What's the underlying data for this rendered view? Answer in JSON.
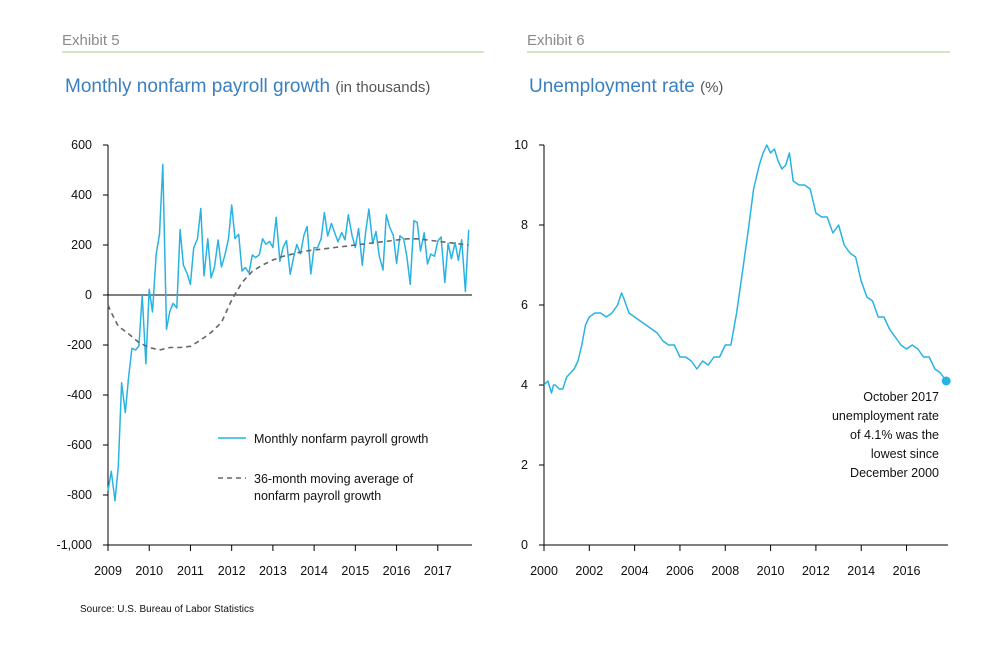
{
  "exhibits": [
    {
      "label": "Exhibit 5"
    },
    {
      "label": "Exhibit 6"
    }
  ],
  "source": "Source: U.S. Bureau of Labor Statistics",
  "colors": {
    "series": "#29b3e2",
    "average": "#666666",
    "rule": "#a9cf8a",
    "title": "#3a80c1"
  },
  "chart_data": [
    {
      "type": "line",
      "title": "Monthly nonfarm payroll growth",
      "subtitle": "(in thousands)",
      "ylim": [
        -1000,
        600
      ],
      "yticks": [
        600,
        400,
        200,
        0,
        -200,
        -400,
        -600,
        -800,
        -1000
      ],
      "ytick_labels": [
        "600",
        "400",
        "200",
        "0",
        "-200",
        "-400",
        "-600",
        "-800",
        "-1,000"
      ],
      "xlim": [
        2009,
        2017.83
      ],
      "xticks": [
        2009,
        2010,
        2011,
        2012,
        2013,
        2014,
        2015,
        2016,
        2017
      ],
      "xtick_labels": [
        "2009",
        "2010",
        "2011",
        "2012",
        "2013",
        "2014",
        "2015",
        "2016",
        "2017"
      ],
      "zero_line": true,
      "legend_position": "bottom-right",
      "series": [
        {
          "name": "Monthly nonfarm payroll growth",
          "style": "solid",
          "x": [
            2009.0,
            2009.08,
            2009.17,
            2009.25,
            2009.33,
            2009.42,
            2009.5,
            2009.58,
            2009.67,
            2009.75,
            2009.83,
            2009.92,
            2010.0,
            2010.08,
            2010.17,
            2010.25,
            2010.33,
            2010.42,
            2010.5,
            2010.58,
            2010.67,
            2010.75,
            2010.83,
            2010.92,
            2011.0,
            2011.08,
            2011.17,
            2011.25,
            2011.33,
            2011.42,
            2011.5,
            2011.58,
            2011.67,
            2011.75,
            2011.83,
            2011.92,
            2012.0,
            2012.08,
            2012.17,
            2012.25,
            2012.33,
            2012.42,
            2012.5,
            2012.58,
            2012.67,
            2012.75,
            2012.83,
            2012.92,
            2013.0,
            2013.08,
            2013.17,
            2013.25,
            2013.33,
            2013.42,
            2013.5,
            2013.58,
            2013.67,
            2013.75,
            2013.83,
            2013.92,
            2014.0,
            2014.08,
            2014.17,
            2014.25,
            2014.33,
            2014.42,
            2014.5,
            2014.58,
            2014.67,
            2014.75,
            2014.83,
            2014.92,
            2015.0,
            2015.08,
            2015.17,
            2015.25,
            2015.33,
            2015.42,
            2015.5,
            2015.58,
            2015.67,
            2015.75,
            2015.83,
            2015.92,
            2016.0,
            2016.08,
            2016.17,
            2016.25,
            2016.33,
            2016.42,
            2016.5,
            2016.58,
            2016.67,
            2016.75,
            2016.83,
            2016.92,
            2017.0,
            2017.08,
            2017.17,
            2017.25,
            2017.33,
            2017.42,
            2017.5,
            2017.58,
            2017.67,
            2017.75
          ],
          "values": [
            -783,
            -705,
            -823,
            -686,
            -351,
            -470,
            -329,
            -213,
            -220,
            -204,
            -2,
            -275,
            23,
            -68,
            164,
            243,
            522,
            -137,
            -66,
            -33,
            -52,
            262,
            119,
            87,
            43,
            189,
            225,
            346,
            77,
            225,
            69,
            110,
            220,
            112,
            157,
            223,
            360,
            226,
            243,
            96,
            110,
            88,
            160,
            150,
            161,
            225,
            203,
            214,
            190,
            311,
            135,
            192,
            218,
            83,
            149,
            202,
            164,
            237,
            274,
            84,
            190,
            188,
            225,
            330,
            236,
            286,
            249,
            213,
            250,
            221,
            321,
            239,
            190,
            266,
            119,
            251,
            344,
            206,
            254,
            157,
            100,
            321,
            272,
            239,
            126,
            237,
            225,
            153,
            43,
            297,
            291,
            176,
            249,
            124,
            164,
            155,
            216,
            232,
            50,
            207,
            145,
            210,
            138,
            221,
            14,
            261
          ]
        },
        {
          "name": "36-month moving average of nonfarm payroll growth",
          "style": "dashed",
          "x": [
            2009.0,
            2009.08,
            2009.25,
            2009.5,
            2009.75,
            2010.0,
            2010.25,
            2010.5,
            2010.75,
            2011.0,
            2011.25,
            2011.5,
            2011.75,
            2012.0,
            2012.25,
            2012.5,
            2012.75,
            2013.0,
            2013.25,
            2013.5,
            2013.75,
            2014.0,
            2014.25,
            2014.5,
            2014.75,
            2015.0,
            2015.25,
            2015.5,
            2015.75,
            2016.0,
            2016.25,
            2016.5,
            2016.75,
            2017.0,
            2017.25,
            2017.5,
            2017.75
          ],
          "values": [
            -40,
            -70,
            -125,
            -155,
            -190,
            -210,
            -220,
            -210,
            -210,
            -205,
            -180,
            -150,
            -110,
            -20,
            50,
            95,
            120,
            140,
            155,
            165,
            175,
            180,
            185,
            190,
            195,
            200,
            205,
            210,
            215,
            220,
            225,
            225,
            220,
            215,
            210,
            205,
            200
          ]
        }
      ]
    },
    {
      "type": "line",
      "title": "Unemployment rate",
      "subtitle": "(%)",
      "ylim": [
        0,
        10
      ],
      "yticks": [
        0,
        2,
        4,
        6,
        8,
        10
      ],
      "ytick_labels": [
        "0",
        "2",
        "4",
        "6",
        "8",
        "10"
      ],
      "xlim": [
        2000,
        2017.83
      ],
      "xticks": [
        2000,
        2002,
        2004,
        2006,
        2008,
        2010,
        2012,
        2014,
        2016
      ],
      "xtick_labels": [
        "2000",
        "2002",
        "2004",
        "2006",
        "2008",
        "2010",
        "2012",
        "2014",
        "2016"
      ],
      "annotation": [
        "October 2017",
        "unemployment rate",
        "of 4.1% was the",
        "lowest since",
        "December 2000"
      ],
      "highlight_point": {
        "x": 2017.75,
        "y": 4.1
      },
      "series": [
        {
          "name": "Unemployment rate",
          "x": [
            2000.0,
            2000.17,
            2000.33,
            2000.42,
            2000.5,
            2000.67,
            2000.83,
            2001.0,
            2001.17,
            2001.33,
            2001.5,
            2001.67,
            2001.83,
            2002.0,
            2002.25,
            2002.5,
            2002.75,
            2003.0,
            2003.25,
            2003.42,
            2003.5,
            2003.75,
            2004.0,
            2004.25,
            2004.5,
            2004.75,
            2005.0,
            2005.25,
            2005.5,
            2005.75,
            2006.0,
            2006.25,
            2006.5,
            2006.75,
            2007.0,
            2007.25,
            2007.5,
            2007.75,
            2008.0,
            2008.25,
            2008.5,
            2008.75,
            2009.0,
            2009.25,
            2009.5,
            2009.67,
            2009.83,
            2010.0,
            2010.17,
            2010.33,
            2010.5,
            2010.67,
            2010.83,
            2011.0,
            2011.25,
            2011.5,
            2011.75,
            2012.0,
            2012.25,
            2012.5,
            2012.75,
            2013.0,
            2013.25,
            2013.5,
            2013.75,
            2014.0,
            2014.25,
            2014.5,
            2014.75,
            2015.0,
            2015.25,
            2015.5,
            2015.75,
            2016.0,
            2016.25,
            2016.5,
            2016.75,
            2017.0,
            2017.25,
            2017.5,
            2017.75
          ],
          "values": [
            4.0,
            4.1,
            3.8,
            4.0,
            4.0,
            3.9,
            3.9,
            4.2,
            4.3,
            4.4,
            4.6,
            5.0,
            5.5,
            5.7,
            5.8,
            5.8,
            5.7,
            5.8,
            6.0,
            6.3,
            6.2,
            5.8,
            5.7,
            5.6,
            5.5,
            5.4,
            5.3,
            5.1,
            5.0,
            5.0,
            4.7,
            4.7,
            4.6,
            4.4,
            4.6,
            4.5,
            4.7,
            4.7,
            5.0,
            5.0,
            5.8,
            6.8,
            7.8,
            8.9,
            9.5,
            9.8,
            10.0,
            9.8,
            9.9,
            9.6,
            9.4,
            9.5,
            9.8,
            9.1,
            9.0,
            9.0,
            8.9,
            8.3,
            8.2,
            8.2,
            7.8,
            8.0,
            7.5,
            7.3,
            7.2,
            6.6,
            6.2,
            6.1,
            5.7,
            5.7,
            5.4,
            5.2,
            5.0,
            4.9,
            5.0,
            4.9,
            4.7,
            4.7,
            4.4,
            4.3,
            4.1
          ]
        }
      ]
    }
  ]
}
